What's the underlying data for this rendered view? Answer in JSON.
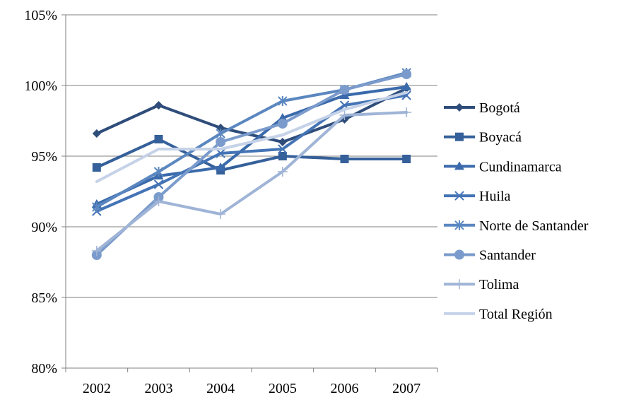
{
  "chart_data": {
    "type": "line",
    "title": "",
    "xlabel": "",
    "ylabel": "",
    "categories": [
      "2002",
      "2003",
      "2004",
      "2005",
      "2006",
      "2007"
    ],
    "ylim": [
      80,
      105
    ],
    "yticks": [
      80,
      85,
      90,
      95,
      100,
      105
    ],
    "ytick_labels": [
      "80%",
      "85%",
      "90%",
      "95%",
      "100%",
      "105%"
    ],
    "grid": "horizontal",
    "legend_position": "right",
    "series": [
      {
        "name": "Bogotá",
        "marker": "diamond",
        "color": "#2f4d7a",
        "values": [
          96.6,
          98.6,
          97.0,
          96.0,
          97.6,
          99.8
        ]
      },
      {
        "name": "Boyacá",
        "marker": "square",
        "color": "#35609a",
        "values": [
          94.2,
          96.2,
          94.0,
          95.0,
          94.8,
          94.8
        ]
      },
      {
        "name": "Cundinamarca",
        "marker": "triangle",
        "color": "#3a6aab",
        "values": [
          91.6,
          93.6,
          94.2,
          97.7,
          99.3,
          99.9
        ]
      },
      {
        "name": "Huila",
        "marker": "x",
        "color": "#4474b6",
        "values": [
          91.1,
          93.0,
          95.2,
          95.5,
          98.6,
          99.3
        ]
      },
      {
        "name": "Norte de Santander",
        "marker": "asterisk",
        "color": "#5b87c0",
        "values": [
          91.4,
          93.9,
          96.6,
          98.9,
          99.7,
          100.9
        ]
      },
      {
        "name": "Santander",
        "marker": "circle",
        "color": "#7a9bcc",
        "values": [
          88.0,
          92.1,
          96.0,
          97.3,
          99.7,
          100.8
        ]
      },
      {
        "name": "Tolima",
        "marker": "plus",
        "color": "#9fb4d6",
        "values": [
          88.3,
          91.8,
          90.9,
          93.9,
          97.9,
          98.1
        ]
      },
      {
        "name": "Total Región",
        "marker": "none",
        "color": "#c5d2e8",
        "values": [
          93.2,
          95.5,
          95.5,
          96.5,
          98.3,
          99.5
        ]
      }
    ]
  }
}
